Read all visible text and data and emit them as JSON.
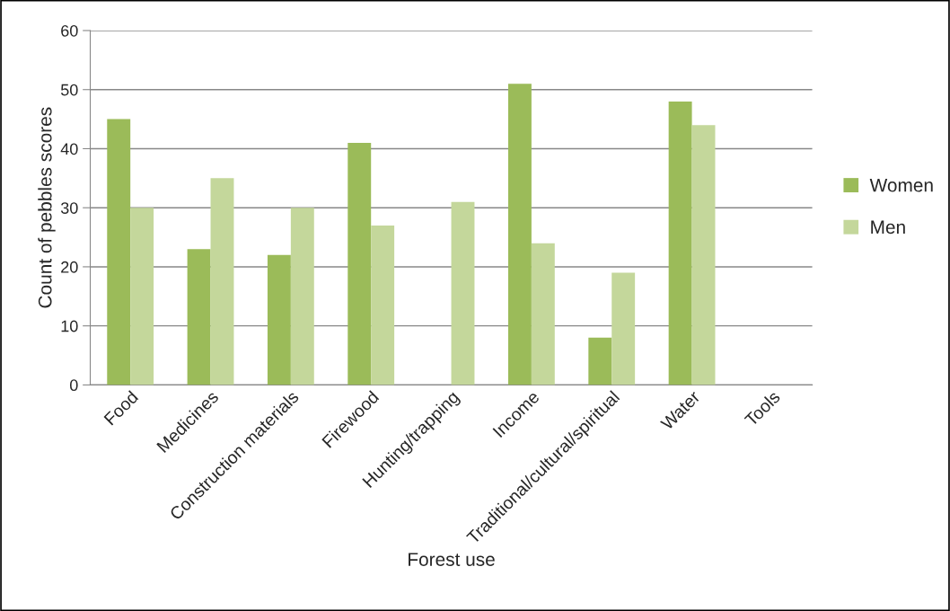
{
  "chart_data": {
    "type": "bar",
    "xlabel": "Forest use",
    "ylabel": "Count of pebbles scores",
    "categories": [
      "Food",
      "Medicines",
      "Construction materials",
      "Firewood",
      "Hunting/trapping",
      "Income",
      "Traditional/cultural/spiritual",
      "Water",
      "Tools"
    ],
    "series": [
      {
        "name": "Women",
        "color": "#9bbb59",
        "values": [
          45,
          23,
          22,
          41,
          null,
          51,
          8,
          48,
          null
        ]
      },
      {
        "name": "Men",
        "color": "#c4d79b",
        "values": [
          30,
          35,
          30,
          27,
          31,
          24,
          19,
          44,
          null
        ]
      }
    ],
    "ylim": [
      0,
      60
    ],
    "yticks": [
      0,
      10,
      20,
      30,
      40,
      50,
      60
    ],
    "grid": "y",
    "legend": "right"
  }
}
